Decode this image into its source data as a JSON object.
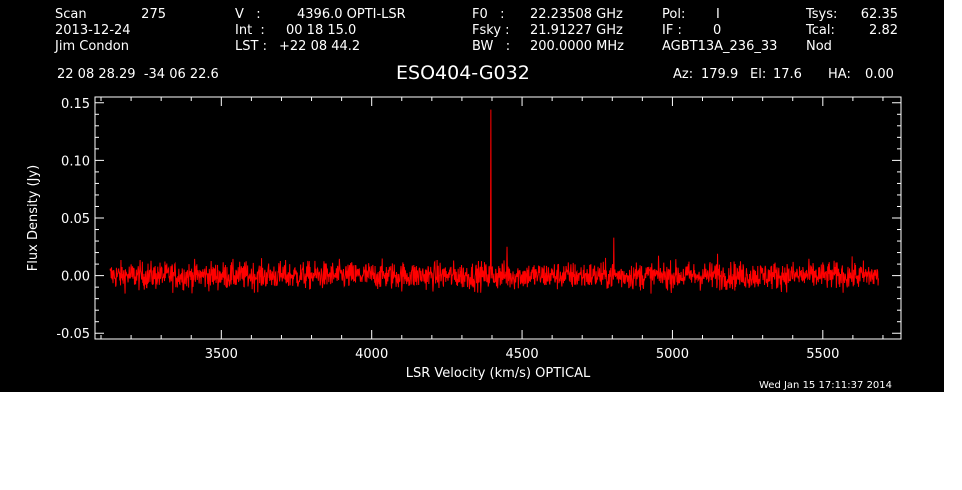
{
  "header": {
    "scan_label": "Scan",
    "scan_value": "275",
    "date": "2013-12-24",
    "observer": "Jim Condon",
    "velocity_label": "V   :",
    "velocity_value": "4396.0 OPTI-LSR",
    "int_label": "Int  :",
    "int_value": "00 18 15.0",
    "lst_label": "LST :",
    "lst_value": "+22 08 44.2",
    "f0_label": "F0   :",
    "f0_value": "22.23508 GHz",
    "fsky_label": "Fsky :",
    "fsky_value": "21.91227 GHz",
    "bw_label": "BW   :",
    "bw_value": "200.0000 MHz",
    "pol_label": "Pol:",
    "pol_value": "I",
    "if_label": "IF :",
    "if_value": "0",
    "project": "AGBT13A_236_33",
    "tsys_label": "Tsys:",
    "tsys_value": "62.35",
    "tcal_label": "Tcal:",
    "tcal_value": "2.82",
    "mode": "Nod",
    "coords": "22 08 28.29  -34 06 22.6",
    "source": "ESO404-G032",
    "az_label": "Az:",
    "az_value": "179.9",
    "el_label": "El:",
    "el_value": "17.6",
    "ha_label": "HA:",
    "ha_value": "0.00"
  },
  "timestamp": "Wed Jan 15 17:11:37 2014",
  "colors": {
    "background": "#000000",
    "axes": "#ffffff",
    "series": "#ff0000"
  },
  "chart_data": {
    "type": "line",
    "xlabel": "LSR Velocity (km/s) OPTICAL",
    "ylabel": "Flux Density (Jy)",
    "xlim": [
      3080,
      5760
    ],
    "ylim": [
      -0.055,
      0.155
    ],
    "xticks": [
      3500,
      4000,
      4500,
      5000,
      5500
    ],
    "xtick_labels": [
      "3500",
      "4000",
      "4500",
      "5000",
      "5500"
    ],
    "yticks": [
      -0.05,
      0.0,
      0.05,
      0.1,
      0.15
    ],
    "ytick_labels": [
      "-0.05",
      "0.00",
      "0.05",
      "0.10",
      "0.15"
    ],
    "series": [
      {
        "x_range": [
          3130,
          5685
        ],
        "baseline": 0.0,
        "noise_rms": 0.006,
        "features": [
          {
            "x": 4396,
            "y": 0.144
          },
          {
            "x": 4450,
            "y": 0.025
          },
          {
            "x": 4805,
            "y": 0.033
          },
          {
            "x": 5150,
            "y": 0.019
          }
        ]
      }
    ]
  }
}
